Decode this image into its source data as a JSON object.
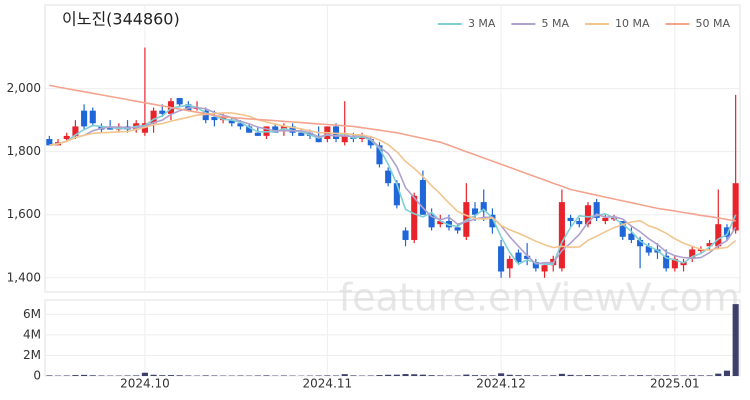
{
  "chart_data": {
    "type": "candlestick",
    "title": "이노진(344860)",
    "watermark": "feature.enViewV.com",
    "categories": [
      null,
      null,
      null,
      null,
      null,
      null,
      null,
      null,
      null,
      null,
      null,
      "2024.10",
      null,
      null,
      null,
      null,
      null,
      null,
      null,
      null,
      null,
      null,
      null,
      null,
      null,
      null,
      null,
      null,
      null,
      null,
      null,
      null,
      "2024.11",
      null,
      null,
      null,
      null,
      null,
      null,
      null,
      null,
      null,
      null,
      null,
      null,
      null,
      null,
      null,
      null,
      null,
      null,
      null,
      "2024.12",
      null,
      null,
      null,
      null,
      null,
      null,
      null,
      null,
      null,
      null,
      null,
      null,
      null,
      null,
      null,
      null,
      null,
      null,
      null,
      "2025.01",
      null,
      null,
      null,
      null,
      null,
      null,
      null
    ],
    "open": [
      1840,
      1820,
      1840,
      1850,
      1930,
      1930,
      1880,
      1880,
      1870,
      1880,
      1870,
      1860,
      1890,
      1930,
      1920,
      1970,
      1950,
      1940,
      1930,
      1910,
      1900,
      1900,
      1890,
      1880,
      1860,
      1850,
      1880,
      1870,
      1880,
      1860,
      1860,
      1850,
      1840,
      1880,
      1830,
      1850,
      1840,
      1840,
      1820,
      1740,
      1700,
      1550,
      1520,
      1710,
      1600,
      1570,
      1580,
      1560,
      1530,
      1620,
      1640,
      1600,
      1500,
      1430,
      1480,
      1470,
      1450,
      1420,
      1440,
      1430,
      1590,
      1580,
      1570,
      1640,
      1580,
      1590,
      1580,
      1540,
      1520,
      1500,
      1490,
      1470,
      1430,
      1440,
      1460,
      1490,
      1500,
      1500,
      1560,
      1550
    ],
    "high": [
      1850,
      1840,
      1860,
      1900,
      1950,
      1940,
      1890,
      1900,
      1890,
      1900,
      1900,
      2130,
      1940,
      1950,
      1970,
      1970,
      1960,
      1960,
      1940,
      1930,
      1920,
      1910,
      1900,
      1890,
      1880,
      1880,
      1890,
      1890,
      1890,
      1870,
      1870,
      1880,
      1880,
      1890,
      1960,
      1860,
      1860,
      1850,
      1830,
      1750,
      1710,
      1560,
      1670,
      1740,
      1620,
      1600,
      1600,
      1570,
      1700,
      1640,
      1680,
      1620,
      1520,
      1470,
      1490,
      1510,
      1460,
      1450,
      1470,
      1680,
      1600,
      1590,
      1640,
      1650,
      1600,
      1600,
      1580,
      1560,
      1530,
      1510,
      1510,
      1490,
      1470,
      1460,
      1500,
      1500,
      1520,
      1680,
      1570,
      1980
    ],
    "low": [
      1820,
      1820,
      1830,
      1840,
      1870,
      1880,
      1860,
      1870,
      1860,
      1860,
      1860,
      1850,
      1860,
      1910,
      1900,
      1940,
      1930,
      1930,
      1890,
      1880,
      1890,
      1880,
      1870,
      1860,
      1850,
      1840,
      1860,
      1850,
      1850,
      1850,
      1840,
      1830,
      1830,
      1830,
      1820,
      1830,
      1830,
      1810,
      1750,
      1690,
      1620,
      1500,
      1510,
      1600,
      1550,
      1560,
      1550,
      1540,
      1520,
      1580,
      1580,
      1540,
      1400,
      1400,
      1440,
      1440,
      1420,
      1400,
      1420,
      1420,
      1560,
      1560,
      1560,
      1580,
      1570,
      1580,
      1520,
      1510,
      1430,
      1470,
      1460,
      1420,
      1420,
      1420,
      1450,
      1480,
      1490,
      1490,
      1520,
      1540
    ],
    "close": [
      1820,
      1830,
      1850,
      1880,
      1880,
      1890,
      1870,
      1870,
      1880,
      1870,
      1890,
      1890,
      1930,
      1920,
      1960,
      1950,
      1930,
      1940,
      1900,
      1900,
      1910,
      1890,
      1880,
      1860,
      1850,
      1880,
      1860,
      1880,
      1860,
      1850,
      1850,
      1830,
      1880,
      1840,
      1850,
      1840,
      1850,
      1820,
      1760,
      1700,
      1630,
      1520,
      1660,
      1600,
      1560,
      1580,
      1560,
      1550,
      1640,
      1600,
      1610,
      1560,
      1420,
      1460,
      1450,
      1460,
      1430,
      1440,
      1460,
      1640,
      1580,
      1570,
      1630,
      1590,
      1590,
      1590,
      1530,
      1520,
      1500,
      1480,
      1480,
      1430,
      1460,
      1450,
      1490,
      1490,
      1510,
      1570,
      1530,
      1700
    ],
    "ylim": [
      1355,
      2265
    ],
    "yticks": [
      {
        "value": 1400,
        "label": "1,400"
      },
      {
        "value": 1600,
        "label": "1,600"
      },
      {
        "value": 1800,
        "label": "1,800"
      },
      {
        "value": 2000,
        "label": "2,000"
      }
    ],
    "grid": true,
    "up_color": "#e8232b",
    "down_color": "#1f66d8",
    "legend": "upper right",
    "series": [
      {
        "name": "3 MA",
        "color": "#7fd0d4",
        "values": [
          1820,
          1825,
          1833,
          1853,
          1870,
          1883,
          1880,
          1877,
          1873,
          1873,
          1880,
          1883,
          1903,
          1913,
          1937,
          1943,
          1947,
          1940,
          1923,
          1913,
          1903,
          1900,
          1893,
          1877,
          1863,
          1863,
          1863,
          1873,
          1867,
          1863,
          1853,
          1843,
          1853,
          1850,
          1857,
          1843,
          1847,
          1837,
          1810,
          1760,
          1697,
          1617,
          1603,
          1593,
          1607,
          1580,
          1567,
          1563,
          1583,
          1597,
          1617,
          1590,
          1530,
          1480,
          1443,
          1457,
          1447,
          1443,
          1443,
          1513,
          1560,
          1597,
          1593,
          1597,
          1603,
          1590,
          1570,
          1547,
          1517,
          1500,
          1487,
          1463,
          1457,
          1447,
          1467,
          1477,
          1497,
          1523,
          1537,
          1600
        ]
      },
      {
        "name": "5 MA",
        "color": "#b0a2cf",
        "values": [
          1820,
          1825,
          1833,
          1845,
          1852,
          1866,
          1874,
          1878,
          1878,
          1876,
          1876,
          1880,
          1892,
          1900,
          1918,
          1930,
          1938,
          1940,
          1936,
          1924,
          1916,
          1908,
          1896,
          1888,
          1878,
          1872,
          1866,
          1866,
          1866,
          1866,
          1860,
          1846,
          1854,
          1850,
          1850,
          1848,
          1852,
          1840,
          1814,
          1794,
          1752,
          1686,
          1654,
          1622,
          1594,
          1584,
          1592,
          1570,
          1578,
          1586,
          1592,
          1592,
          1566,
          1530,
          1500,
          1470,
          1444,
          1448,
          1448,
          1486,
          1510,
          1538,
          1576,
          1602,
          1592,
          1594,
          1586,
          1564,
          1546,
          1524,
          1506,
          1482,
          1470,
          1464,
          1462,
          1464,
          1480,
          1502,
          1518,
          1560
        ]
      },
      {
        "name": "10 MA",
        "color": "#f2c58f",
        "values": [
          1820,
          1825,
          1833,
          1845,
          1852,
          1858,
          1860,
          1861,
          1863,
          1864,
          1871,
          1877,
          1885,
          1889,
          1897,
          1903,
          1909,
          1916,
          1918,
          1921,
          1923,
          1923,
          1918,
          1912,
          1901,
          1894,
          1887,
          1881,
          1877,
          1872,
          1866,
          1860,
          1860,
          1858,
          1858,
          1854,
          1853,
          1847,
          1837,
          1822,
          1800,
          1769,
          1747,
          1721,
          1692,
          1666,
          1637,
          1610,
          1598,
          1588,
          1586,
          1590,
          1566,
          1552,
          1541,
          1529,
          1516,
          1505,
          1496,
          1500,
          1497,
          1498,
          1519,
          1532,
          1546,
          1559,
          1569,
          1577,
          1581,
          1565,
          1555,
          1541,
          1524,
          1510,
          1500,
          1490,
          1488,
          1493,
          1496,
          1518
        ]
      },
      {
        "name": "50 MA",
        "color": "#f4a48e",
        "values": [
          2010,
          2005,
          2000,
          1995,
          1990,
          1985,
          1980,
          1975,
          1970,
          1965,
          1960,
          1955,
          1950,
          1945,
          1940,
          1935,
          1930,
          1925,
          1920,
          1915,
          1910,
          1908,
          1906,
          1904,
          1902,
          1900,
          1898,
          1896,
          1894,
          1892,
          1890,
          1888,
          1886,
          1884,
          1882,
          1880,
          1876,
          1872,
          1868,
          1864,
          1860,
          1854,
          1848,
          1842,
          1836,
          1830,
          1820,
          1810,
          1800,
          1790,
          1780,
          1770,
          1760,
          1750,
          1740,
          1730,
          1720,
          1710,
          1700,
          1690,
          1680,
          1674,
          1668,
          1662,
          1656,
          1650,
          1644,
          1638,
          1632,
          1626,
          1620,
          1616,
          1612,
          1607,
          1603,
          1598,
          1594,
          1590,
          1585,
          1580
        ]
      }
    ],
    "volume": {
      "color": "#3d3f6b",
      "values": [
        60000,
        40000,
        50000,
        90000,
        110000,
        70000,
        50000,
        40000,
        40000,
        50000,
        60000,
        320000,
        120000,
        80000,
        90000,
        70000,
        50000,
        40000,
        60000,
        50000,
        40000,
        40000,
        50000,
        40000,
        50000,
        60000,
        40000,
        50000,
        40000,
        30000,
        40000,
        50000,
        60000,
        50000,
        180000,
        60000,
        40000,
        50000,
        90000,
        120000,
        130000,
        190000,
        170000,
        130000,
        80000,
        60000,
        50000,
        50000,
        140000,
        80000,
        70000,
        60000,
        260000,
        120000,
        80000,
        70000,
        60000,
        60000,
        70000,
        210000,
        110000,
        70000,
        90000,
        80000,
        60000,
        50000,
        70000,
        60000,
        80000,
        60000,
        50000,
        70000,
        60000,
        50000,
        70000,
        60000,
        60000,
        230000,
        520000,
        7000000
      ],
      "ylim": [
        0,
        7400000
      ],
      "yticks": [
        0,
        {
          "value": 2000000,
          "label": "2M"
        },
        {
          "value": 4000000,
          "label": "4M"
        },
        {
          "value": 6000000,
          "label": "6M"
        }
      ]
    }
  }
}
